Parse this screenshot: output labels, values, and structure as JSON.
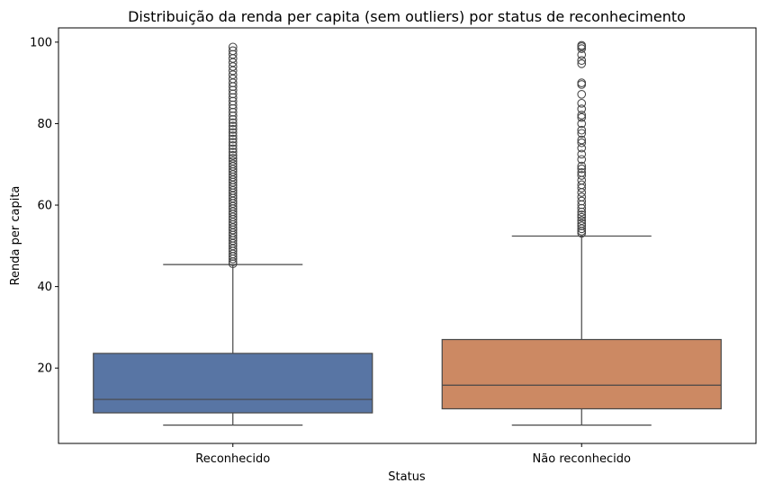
{
  "chart_data": {
    "type": "box",
    "title": "Distribuição da renda per capita (sem outliers) por status de reconhecimento",
    "xlabel": "Status",
    "ylabel": "Renda per capita",
    "ylim": [
      1.5,
      103.5
    ],
    "yticks": [
      20,
      40,
      60,
      80,
      100
    ],
    "grid": false,
    "categories": [
      "Reconhecido",
      "Não reconhecido"
    ],
    "colors": [
      "#5875a4",
      "#cc8963"
    ],
    "boxes": [
      {
        "category": "Reconhecido",
        "whislo": 6,
        "q1": 9,
        "median": 12.3,
        "q3": 23.6,
        "whishi": 45.4,
        "fliers": [
          45.6,
          46.1,
          46.8,
          47.4,
          48.0,
          48.7,
          49.3,
          50.0,
          50.6,
          51.3,
          51.9,
          52.6,
          53.2,
          53.9,
          54.5,
          55.2,
          55.8,
          56.5,
          57.1,
          57.8,
          58.4,
          59.1,
          59.7,
          60.4,
          61.0,
          61.7,
          62.3,
          63.0,
          63.6,
          64.3,
          64.9,
          65.6,
          66.2,
          66.9,
          67.5,
          68.2,
          68.8,
          69.5,
          70.1,
          70.8,
          71.5,
          72.2,
          73.0,
          73.8,
          74.6,
          75.4,
          76.2,
          77.0,
          77.8,
          78.6,
          79.4,
          80.2,
          81.0,
          81.9,
          82.8,
          83.7,
          84.6,
          85.5,
          86.4,
          87.3,
          88.2,
          89.1,
          90.0,
          91.0,
          92.0,
          93.0,
          94.0,
          95.0,
          96.0,
          97.0,
          97.9,
          98.8
        ]
      },
      {
        "category": "Não reconhecido",
        "whislo": 6,
        "q1": 10,
        "median": 15.8,
        "q3": 27,
        "whishi": 52.4,
        "fliers": [
          53.1,
          53.6,
          54.2,
          54.9,
          55.5,
          56.2,
          57.0,
          57.6,
          58.3,
          59.2,
          60.1,
          61.0,
          62.0,
          63.1,
          64.2,
          65.0,
          66.1,
          67.3,
          68.0,
          68.9,
          69.6,
          71.2,
          72.5,
          74.0,
          75.3,
          76.0,
          77.6,
          78.4,
          80.0,
          81.5,
          82.1,
          83.6,
          85.0,
          87.2,
          89.6,
          90.0,
          94.7,
          95.5,
          96.9,
          98.4,
          98.9,
          99.2
        ]
      }
    ]
  }
}
